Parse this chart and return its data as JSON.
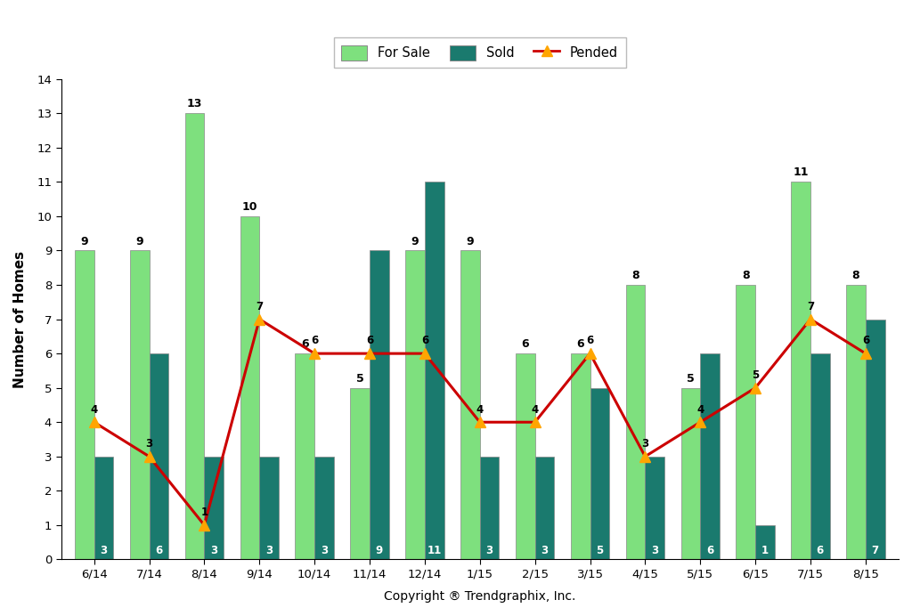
{
  "categories": [
    "6/14",
    "7/14",
    "8/14",
    "9/14",
    "10/14",
    "11/14",
    "12/14",
    "1/15",
    "2/15",
    "3/15",
    "4/15",
    "5/15",
    "6/15",
    "7/15",
    "8/15"
  ],
  "for_sale": [
    9,
    9,
    13,
    10,
    6,
    5,
    9,
    9,
    6,
    6,
    8,
    5,
    8,
    11,
    8
  ],
  "sold": [
    3,
    6,
    3,
    3,
    3,
    9,
    11,
    3,
    3,
    5,
    3,
    6,
    1,
    6,
    7
  ],
  "pended": [
    4,
    3,
    1,
    7,
    6,
    6,
    6,
    4,
    4,
    6,
    3,
    4,
    5,
    7,
    6
  ],
  "color_for_sale": "#7EE07E",
  "color_sold": "#1a7a6e",
  "color_pended_line": "#cc0000",
  "color_pended_marker_face": "#FFA500",
  "color_pended_marker_edge": "#cc0000",
  "ylabel": "Number of Homes",
  "xlabel": "Copyright ® Trendgraphix, Inc.",
  "ylim": [
    0,
    14
  ],
  "yticks": [
    0,
    1,
    2,
    3,
    4,
    5,
    6,
    7,
    8,
    9,
    10,
    11,
    12,
    13,
    14
  ],
  "legend_for_sale": "For Sale",
  "legend_sold": "Sold",
  "legend_pended": "Pended",
  "bar_width": 0.35,
  "background_color": "#ffffff",
  "plot_bg_color": "#ffffff"
}
